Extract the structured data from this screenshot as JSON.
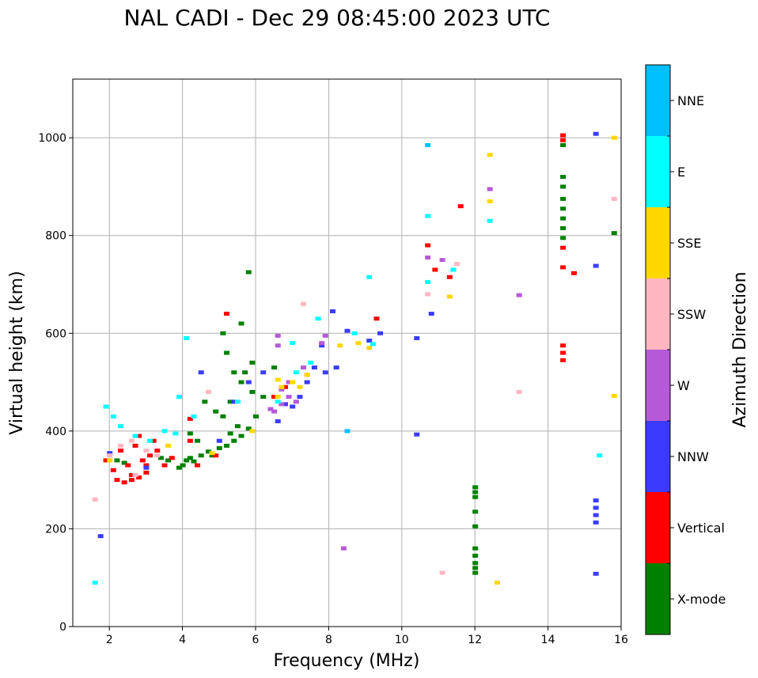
{
  "chart_data": {
    "type": "scatter",
    "title": "NAL CADI - Dec 29 08:45:00 2023 UTC",
    "xlabel": "Frequency (MHz)",
    "ylabel": "Virtual height (km)",
    "xlim": [
      1,
      16
    ],
    "ylim": [
      0,
      1120
    ],
    "xticks": [
      2,
      4,
      6,
      8,
      10,
      12,
      14,
      16
    ],
    "yticks": [
      0,
      200,
      400,
      600,
      800,
      1000
    ],
    "grid": true,
    "colorbar": {
      "label": "Azimuth Direction",
      "categories": [
        {
          "name": "X-mode",
          "color": "#008000"
        },
        {
          "name": "Vertical",
          "color": "#ff0000"
        },
        {
          "name": "NNW",
          "color": "#3b3bff"
        },
        {
          "name": "W",
          "color": "#b659d8"
        },
        {
          "name": "SSW",
          "color": "#ffb6c1"
        },
        {
          "name": "SSE",
          "color": "#ffd700"
        },
        {
          "name": "E",
          "color": "#00ffff"
        },
        {
          "name": "NNE",
          "color": "#00bfff"
        }
      ]
    },
    "series": [
      {
        "name": "X-mode",
        "points": [
          [
            3.9,
            325
          ],
          [
            4.0,
            330
          ],
          [
            4.1,
            340
          ],
          [
            4.2,
            345
          ],
          [
            4.3,
            338
          ],
          [
            4.5,
            350
          ],
          [
            4.7,
            358
          ],
          [
            4.8,
            350
          ],
          [
            5.0,
            365
          ],
          [
            5.2,
            370
          ],
          [
            5.4,
            380
          ],
          [
            5.6,
            390
          ],
          [
            5.8,
            405
          ],
          [
            6.0,
            430
          ],
          [
            5.3,
            395
          ],
          [
            5.5,
            410
          ],
          [
            5.1,
            430
          ],
          [
            4.9,
            440
          ],
          [
            4.6,
            460
          ],
          [
            5.3,
            460
          ],
          [
            5.6,
            500
          ],
          [
            5.7,
            520
          ],
          [
            5.9,
            540
          ],
          [
            5.4,
            520
          ],
          [
            5.2,
            560
          ],
          [
            5.1,
            600
          ],
          [
            5.6,
            620
          ],
          [
            6.2,
            470
          ],
          [
            3.6,
            340
          ],
          [
            3.4,
            345
          ],
          [
            2.2,
            340
          ],
          [
            2.4,
            335
          ],
          [
            5.8,
            725
          ],
          [
            4.4,
            380
          ],
          [
            4.2,
            395
          ],
          [
            5.9,
            480
          ],
          [
            6.5,
            530
          ],
          [
            12.0,
            285
          ],
          [
            12.0,
            275
          ],
          [
            12.0,
            265
          ],
          [
            12.0,
            235
          ],
          [
            12.0,
            205
          ],
          [
            12.0,
            160
          ],
          [
            12.0,
            145
          ],
          [
            12.0,
            130
          ],
          [
            12.0,
            120
          ],
          [
            12.0,
            110
          ],
          [
            14.4,
            920
          ],
          [
            14.4,
            900
          ],
          [
            14.4,
            875
          ],
          [
            14.4,
            855
          ],
          [
            14.4,
            835
          ],
          [
            14.4,
            815
          ],
          [
            14.4,
            795
          ],
          [
            14.4,
            985
          ],
          [
            15.8,
            805
          ]
        ]
      },
      {
        "name": "Vertical",
        "points": [
          [
            2.6,
            300
          ],
          [
            2.8,
            305
          ],
          [
            3.0,
            315
          ],
          [
            2.5,
            330
          ],
          [
            2.9,
            340
          ],
          [
            3.1,
            350
          ],
          [
            3.3,
            360
          ],
          [
            2.7,
            370
          ],
          [
            2.3,
            360
          ],
          [
            2.1,
            320
          ],
          [
            1.9,
            340
          ],
          [
            2.6,
            310
          ],
          [
            3.5,
            330
          ],
          [
            3.7,
            345
          ],
          [
            4.2,
            380
          ],
          [
            4.2,
            425
          ],
          [
            4.4,
            330
          ],
          [
            2.8,
            390
          ],
          [
            3.2,
            380
          ],
          [
            4.9,
            350
          ],
          [
            5.2,
            640
          ],
          [
            6.5,
            470
          ],
          [
            6.8,
            490
          ],
          [
            9.3,
            630
          ],
          [
            10.7,
            780
          ],
          [
            10.9,
            730
          ],
          [
            11.3,
            715
          ],
          [
            11.6,
            860
          ],
          [
            14.4,
            1005
          ],
          [
            14.4,
            995
          ],
          [
            14.4,
            775
          ],
          [
            14.4,
            735
          ],
          [
            14.4,
            575
          ],
          [
            14.4,
            560
          ],
          [
            14.4,
            545
          ],
          [
            14.7,
            723
          ],
          [
            2.4,
            295
          ],
          [
            2.2,
            300
          ],
          [
            3.0,
            330
          ]
        ]
      },
      {
        "name": "NNW",
        "points": [
          [
            1.75,
            185
          ],
          [
            2.0,
            355
          ],
          [
            3.0,
            325
          ],
          [
            5.4,
            460
          ],
          [
            5.8,
            500
          ],
          [
            6.2,
            520
          ],
          [
            6.6,
            420
          ],
          [
            6.8,
            455
          ],
          [
            7.0,
            450
          ],
          [
            7.2,
            470
          ],
          [
            7.4,
            500
          ],
          [
            7.6,
            530
          ],
          [
            7.8,
            575
          ],
          [
            7.9,
            520
          ],
          [
            8.2,
            530
          ],
          [
            8.1,
            645
          ],
          [
            8.5,
            605
          ],
          [
            9.1,
            585
          ],
          [
            9.4,
            600
          ],
          [
            10.4,
            590
          ],
          [
            10.4,
            393
          ],
          [
            10.8,
            640
          ],
          [
            15.3,
            1008
          ],
          [
            15.3,
            738
          ],
          [
            15.3,
            258
          ],
          [
            15.3,
            243
          ],
          [
            15.3,
            228
          ],
          [
            15.3,
            213
          ],
          [
            15.3,
            108
          ],
          [
            5.0,
            380
          ],
          [
            4.5,
            520
          ]
        ]
      },
      {
        "name": "W",
        "points": [
          [
            6.5,
            440
          ],
          [
            6.7,
            455
          ],
          [
            6.9,
            470
          ],
          [
            7.1,
            460
          ],
          [
            6.6,
            575
          ],
          [
            6.6,
            595
          ],
          [
            7.3,
            530
          ],
          [
            7.4,
            515
          ],
          [
            7.8,
            580
          ],
          [
            7.9,
            595
          ],
          [
            8.4,
            160
          ],
          [
            12.4,
            895
          ],
          [
            13.2,
            678
          ],
          [
            11.1,
            750
          ],
          [
            10.7,
            755
          ],
          [
            6.7,
            485
          ],
          [
            6.4,
            445
          ],
          [
            6.9,
            500
          ]
        ]
      },
      {
        "name": "SSW",
        "points": [
          [
            1.6,
            260
          ],
          [
            2.0,
            350
          ],
          [
            2.3,
            370
          ],
          [
            2.6,
            380
          ],
          [
            3.0,
            360
          ],
          [
            3.3,
            350
          ],
          [
            11.1,
            110
          ],
          [
            11.5,
            742
          ],
          [
            13.2,
            480
          ],
          [
            15.8,
            875
          ],
          [
            7.3,
            660
          ],
          [
            10.7,
            680
          ],
          [
            4.7,
            480
          ],
          [
            2.7,
            310
          ]
        ]
      },
      {
        "name": "SSE",
        "points": [
          [
            2.0,
            340
          ],
          [
            6.6,
            470
          ],
          [
            6.7,
            490
          ],
          [
            7.0,
            500
          ],
          [
            7.2,
            490
          ],
          [
            7.4,
            515
          ],
          [
            8.3,
            575
          ],
          [
            8.8,
            580
          ],
          [
            9.1,
            570
          ],
          [
            11.3,
            675
          ],
          [
            12.4,
            965
          ],
          [
            12.4,
            870
          ],
          [
            12.6,
            90
          ],
          [
            15.8,
            1000
          ],
          [
            15.8,
            472
          ],
          [
            3.6,
            370
          ],
          [
            6.6,
            505
          ],
          [
            5.9,
            400
          ],
          [
            4.8,
            355
          ]
        ]
      },
      {
        "name": "E",
        "points": [
          [
            1.6,
            90
          ],
          [
            1.9,
            450
          ],
          [
            2.1,
            430
          ],
          [
            2.3,
            410
          ],
          [
            2.7,
            390
          ],
          [
            3.1,
            380
          ],
          [
            3.5,
            400
          ],
          [
            3.8,
            395
          ],
          [
            4.1,
            590
          ],
          [
            6.6,
            460
          ],
          [
            7.1,
            520
          ],
          [
            7.5,
            540
          ],
          [
            7.7,
            630
          ],
          [
            8.7,
            600
          ],
          [
            9.1,
            715
          ],
          [
            9.2,
            578
          ],
          [
            10.7,
            705
          ],
          [
            10.7,
            840
          ],
          [
            11.4,
            730
          ],
          [
            12.4,
            830
          ],
          [
            15.4,
            350
          ],
          [
            4.3,
            430
          ],
          [
            3.9,
            470
          ],
          [
            5.5,
            460
          ],
          [
            7.0,
            580
          ]
        ]
      },
      {
        "name": "NNE",
        "points": [
          [
            10.7,
            985
          ],
          [
            8.5,
            400
          ]
        ]
      }
    ]
  }
}
